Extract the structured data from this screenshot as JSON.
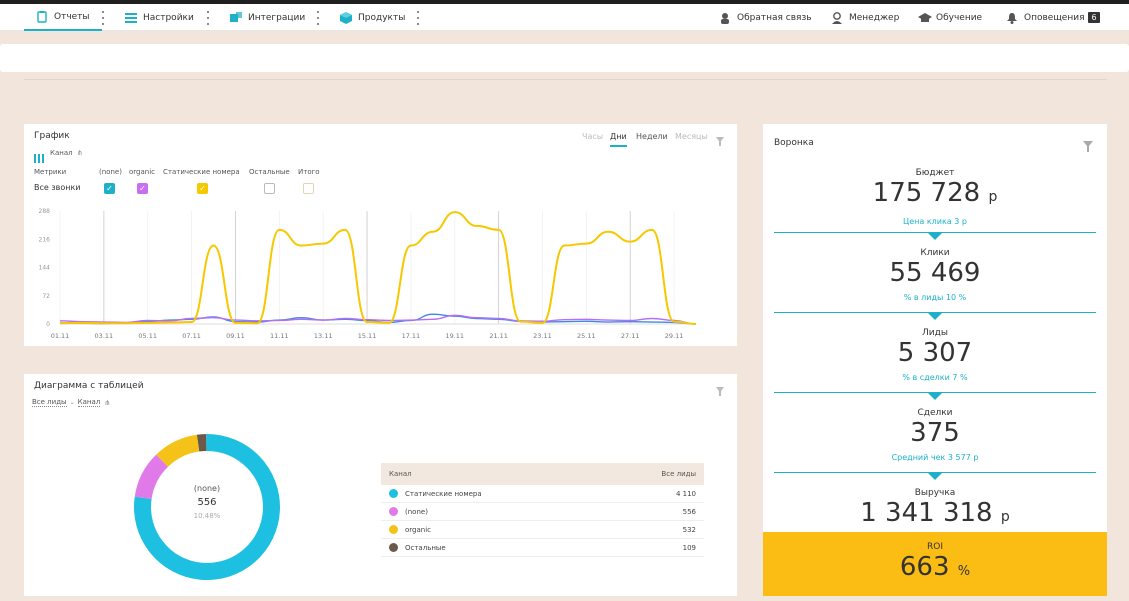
{
  "nav": {
    "items": [
      {
        "label": "Отчеты"
      },
      {
        "label": "Настройки"
      },
      {
        "label": "Интеграции"
      },
      {
        "label": "Продукты"
      }
    ],
    "right": [
      {
        "label": "Обратная связь"
      },
      {
        "label": "Менеджер"
      },
      {
        "label": "Обучение"
      },
      {
        "label": "Оповещения",
        "badge": "6"
      }
    ]
  },
  "graph": {
    "title": "График",
    "channel": "Канал",
    "tabs": [
      "Часы",
      "Дни",
      "Недели",
      "Месяцы"
    ],
    "active_tab": "Дни",
    "metrics_label": "Метрики",
    "metric_row": "Все звонки",
    "columns": [
      "(none)",
      "organic",
      "Статические номера",
      "Остальные",
      "Итого"
    ]
  },
  "chart_data": {
    "type": "line",
    "y_ticks": [
      "288",
      "216",
      "144",
      "72",
      "0"
    ],
    "ylim": [
      0,
      288
    ],
    "x": [
      "01.11",
      "02.11",
      "03.11",
      "04.11",
      "05.11",
      "06.11",
      "07.11",
      "08.11",
      "09.11",
      "10.11",
      "11.11",
      "12.11",
      "13.11",
      "14.11",
      "15.11",
      "16.11",
      "17.11",
      "18.11",
      "19.11",
      "20.11",
      "21.11",
      "22.11",
      "23.11",
      "24.11",
      "25.11",
      "26.11",
      "27.11",
      "28.11",
      "29.11",
      "30.11"
    ],
    "x_labels": [
      "01.11",
      "03.11",
      "05.11",
      "07.11",
      "09.11",
      "11.11",
      "13.11",
      "15.11",
      "17.11",
      "19.11",
      "21.11",
      "23.11",
      "25.11",
      "27.11",
      "29.11"
    ],
    "series": [
      {
        "name": "Статические номера",
        "color": "#f5c800",
        "values": [
          2,
          3,
          2,
          2,
          3,
          4,
          5,
          200,
          3,
          2,
          240,
          200,
          205,
          240,
          5,
          3,
          200,
          235,
          285,
          250,
          240,
          6,
          3,
          200,
          205,
          235,
          210,
          240,
          6,
          0
        ]
      },
      {
        "name": "organic",
        "color": "#b86ef2",
        "values": [
          8,
          6,
          5,
          4,
          9,
          8,
          14,
          16,
          10,
          8,
          9,
          12,
          10,
          14,
          11,
          9,
          10,
          12,
          22,
          16,
          14,
          8,
          7,
          11,
          12,
          10,
          9,
          14,
          9,
          0
        ]
      },
      {
        "name": "(none)",
        "color": "#3f8be0",
        "values": [
          3,
          2,
          1,
          3,
          6,
          10,
          12,
          18,
          6,
          5,
          10,
          16,
          10,
          12,
          9,
          4,
          9,
          25,
          20,
          14,
          12,
          7,
          5,
          6,
          7,
          5,
          6,
          5,
          4,
          0
        ]
      }
    ]
  },
  "diagram": {
    "title": "Диаграмма с таблицей",
    "filter1": "Все лиды",
    "filter2": "Канал",
    "center_label": "(none)",
    "center_value": "556",
    "center_pct": "10.48%",
    "table_head": [
      "Канал",
      "Все лиды"
    ],
    "rows": [
      {
        "label": "Статические номера",
        "value": "4 110",
        "color": "#1dc0e0",
        "n": 4110
      },
      {
        "label": "(none)",
        "value": "556",
        "color": "#e07ae8",
        "n": 556
      },
      {
        "label": "organic",
        "value": "532",
        "color": "#f5c21a",
        "n": 532
      },
      {
        "label": "Остальные",
        "value": "109",
        "color": "#6b5a4a",
        "n": 109
      }
    ]
  },
  "funnel": {
    "title": "Воронка",
    "stages": [
      {
        "label": "Бюджет",
        "value": "175 728",
        "unit": "р",
        "sub": "Цена клика 3 р"
      },
      {
        "label": "Клики",
        "value": "55 469",
        "unit": "",
        "sub": "% в лиды 10 %"
      },
      {
        "label": "Лиды",
        "value": "5 307",
        "unit": "",
        "sub": "% в сделки 7 %"
      },
      {
        "label": "Сделки",
        "value": "375",
        "unit": "",
        "sub": "Средний чек 3 577 р"
      },
      {
        "label": "Выручка",
        "value": "1 341 318",
        "unit": "р",
        "sub": ""
      }
    ],
    "roi": {
      "label": "ROI",
      "value": "663",
      "unit": "%"
    }
  }
}
